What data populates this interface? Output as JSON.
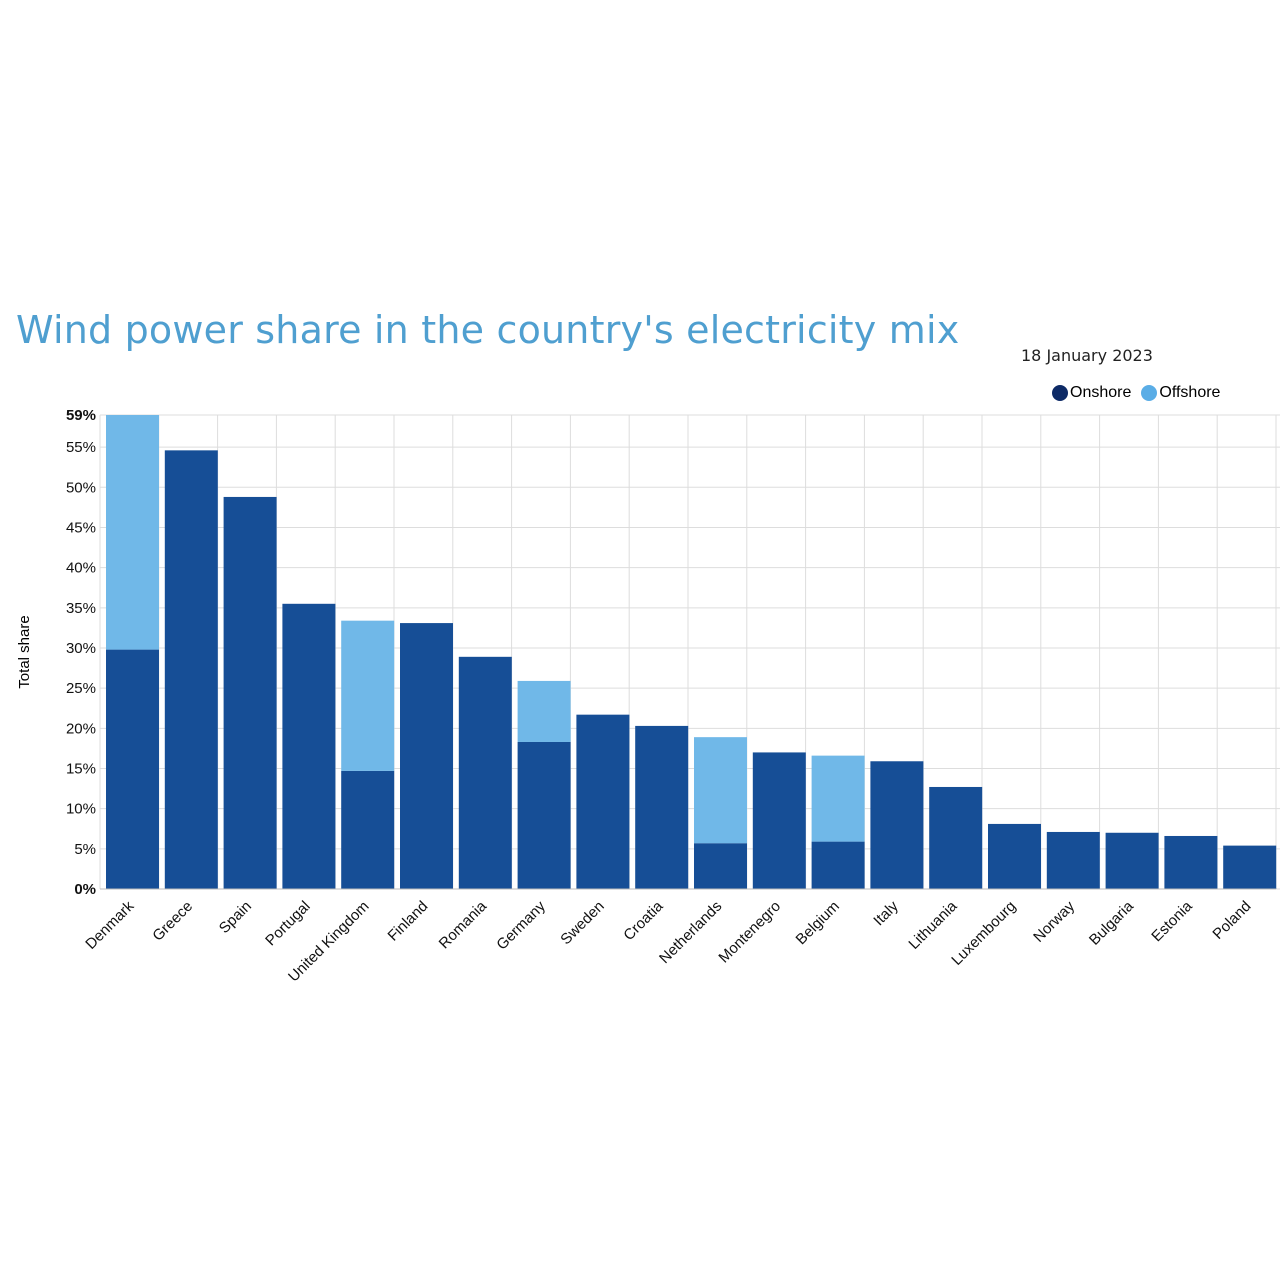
{
  "title": "Wind power share in the country's electricity mix",
  "subtitle": "18 January 2023",
  "colors": {
    "onshore": "#164e96",
    "offshore": "#70b8e8",
    "legend_onshore": "#0d2a66",
    "legend_offshore": "#5aade6",
    "grid": "#dddddd",
    "title": "#4f9fd0"
  },
  "chart_data": {
    "type": "bar",
    "stacked": true,
    "ylabel": "Total share",
    "xlabel": "",
    "ylim": [
      0,
      59
    ],
    "yticks": [
      0,
      5,
      10,
      15,
      20,
      25,
      30,
      35,
      40,
      45,
      50,
      55,
      59
    ],
    "ytick_labels": [
      "0%",
      "5%",
      "10%",
      "15%",
      "20%",
      "25%",
      "30%",
      "35%",
      "40%",
      "45%",
      "50%",
      "55%",
      "59%"
    ],
    "grid": true,
    "legend_position": "top-right",
    "categories": [
      "Denmark",
      "Greece",
      "Spain",
      "Portugal",
      "United Kingdom",
      "Finland",
      "Romania",
      "Germany",
      "Sweden",
      "Croatia",
      "Netherlands",
      "Montenegro",
      "Belgium",
      "Italy",
      "Lithuania",
      "Luxembourg",
      "Norway",
      "Bulgaria",
      "Estonia",
      "Poland"
    ],
    "series": [
      {
        "name": "Onshore",
        "values": [
          29.8,
          54.6,
          48.8,
          35.5,
          14.7,
          33.1,
          28.9,
          18.3,
          21.7,
          20.3,
          5.7,
          17.0,
          5.9,
          15.9,
          12.7,
          8.1,
          7.1,
          7.0,
          6.6,
          5.4
        ]
      },
      {
        "name": "Offshore",
        "values": [
          29.2,
          0,
          0,
          0,
          18.7,
          0,
          0,
          7.6,
          0,
          0,
          13.2,
          0,
          10.7,
          0,
          0,
          0,
          0,
          0,
          0,
          0
        ]
      }
    ]
  }
}
